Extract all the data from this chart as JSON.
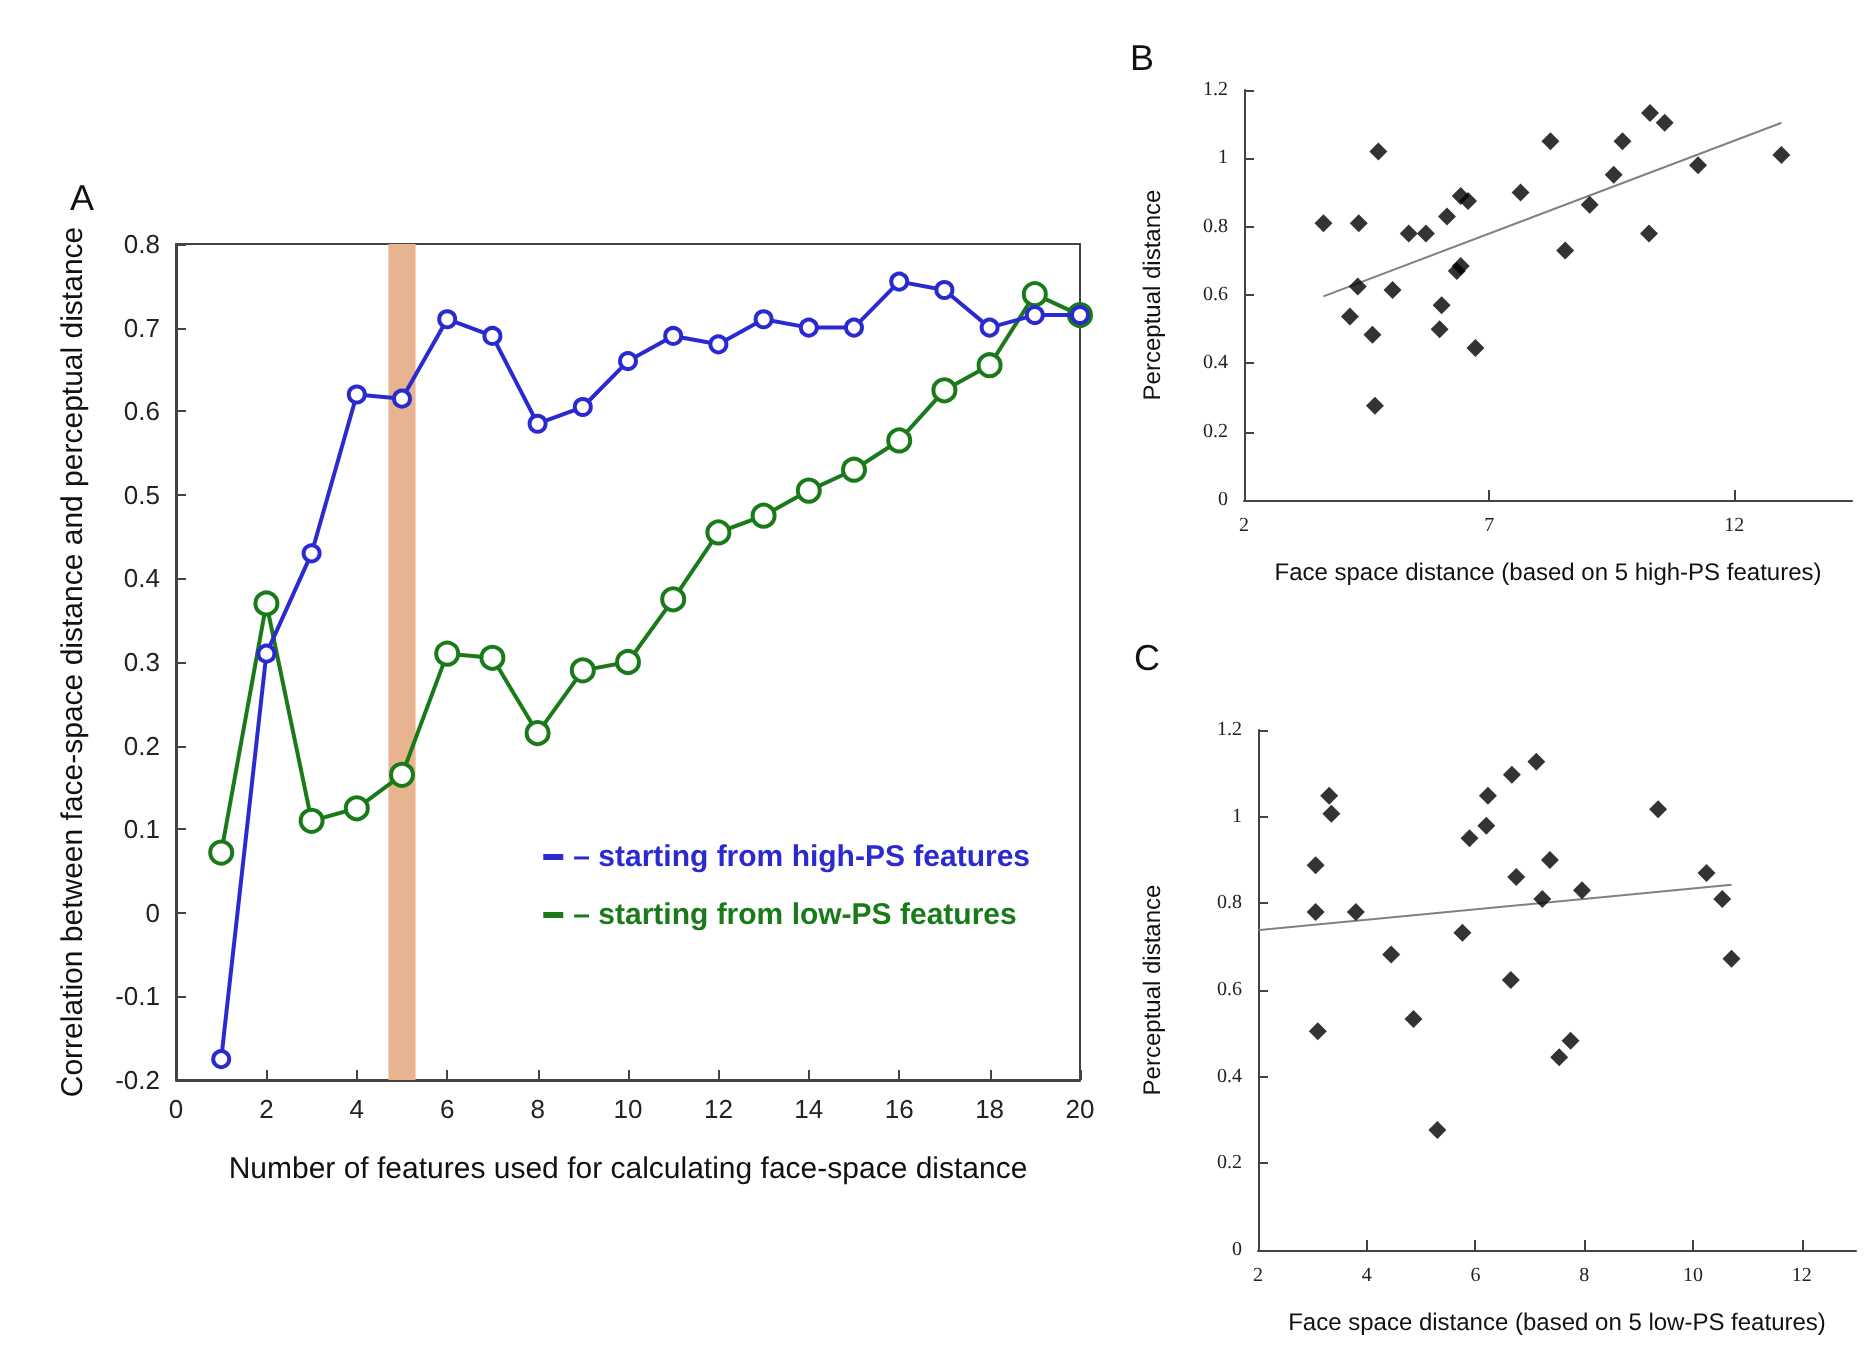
{
  "chart_data": [
    {
      "type": "line",
      "annotations": [
        "A"
      ],
      "xlabel": "Number of features used for calculating face-space distance",
      "ylabel": "Correlation between face-space distance and perceptual distance",
      "x": [
        1,
        2,
        3,
        4,
        5,
        6,
        7,
        8,
        9,
        10,
        11,
        12,
        13,
        14,
        15,
        16,
        17,
        18,
        19,
        20
      ],
      "series": [
        {
          "name": "– starting from high-PS features",
          "color": "#2a2ad0",
          "values": [
            -0.175,
            0.31,
            0.43,
            0.62,
            0.615,
            0.71,
            0.69,
            0.585,
            0.605,
            0.66,
            0.69,
            0.68,
            0.71,
            0.7,
            0.7,
            0.755,
            0.745,
            0.7,
            0.715,
            0.715
          ]
        },
        {
          "name": "– starting from low-PS features",
          "color": "#1a7a1a",
          "values": [
            0.072,
            0.37,
            0.11,
            0.125,
            0.165,
            0.31,
            0.305,
            0.215,
            0.29,
            0.3,
            0.375,
            0.455,
            0.475,
            0.505,
            0.53,
            0.565,
            0.625,
            0.655,
            0.74,
            0.715
          ]
        }
      ],
      "bands": [
        {
          "axis": "x",
          "from": 4.7,
          "to": 5.3,
          "color": "#e8b48f"
        }
      ],
      "xlim": [
        0,
        20
      ],
      "xticks": [
        0,
        2,
        4,
        6,
        8,
        10,
        12,
        14,
        16,
        18,
        20
      ],
      "ylim": [
        -0.2,
        0.8
      ],
      "yticks": [
        -0.2,
        -0.1,
        0,
        0.1,
        0.2,
        0.3,
        0.4,
        0.5,
        0.6,
        0.7,
        0.8
      ],
      "grid": false,
      "legend": "bottom right",
      "marker": "circle"
    },
    {
      "type": "scatter",
      "annotations": [
        "B"
      ],
      "xlabel": "Face space distance (based on 5 high-PS features)",
      "ylabel": "Perceptual distance",
      "series": [
        {
          "color": "#000000",
          "x": [
            3.62,
            4.34,
            4.74,
            4.32,
            4.16,
            4.62,
            4.67,
            5.03,
            5.36,
            5.71,
            6.14,
            6.03,
            5.99,
            6.34,
            6.42,
            6.42,
            6.57,
            6.72,
            7.64,
            8.25,
            8.55,
            9.05,
            9.54,
            9.72,
            10.26,
            10.28,
            10.58,
            11.26,
            12.96
          ],
          "values": [
            0.81,
            0.81,
            1.02,
            0.625,
            0.537,
            0.484,
            0.276,
            0.615,
            0.78,
            0.78,
            0.83,
            0.57,
            0.5,
            0.67,
            0.685,
            0.89,
            0.875,
            0.445,
            0.9,
            1.05,
            0.73,
            0.864,
            0.952,
            1.05,
            0.78,
            1.133,
            1.104,
            0.98,
            1.01
          ]
        },
        {
          "type": "line",
          "marker": "none",
          "color": "#808080",
          "x": [
            3.62,
            12.96
          ],
          "values": [
            0.596,
            1.104
          ]
        }
      ],
      "xlim": [
        2,
        14.4
      ],
      "xticks": [
        2,
        7,
        12
      ],
      "ylim": [
        0,
        1.2
      ],
      "yticks": [
        0,
        0.2,
        0.4,
        0.6,
        0.8,
        1,
        1.2
      ],
      "grid": false,
      "legend": false,
      "marker": "diamond"
    },
    {
      "type": "scatter",
      "annotations": [
        "C"
      ],
      "xlabel": "Face space distance (based on 5 low-PS features)",
      "ylabel": "Perceptual distance",
      "series": [
        {
          "color": "#000000",
          "x": [
            3.06,
            3.06,
            3.1,
            3.31,
            3.35,
            3.8,
            4.45,
            4.86,
            5.3,
            5.76,
            5.89,
            6.2,
            6.23,
            6.67,
            6.65,
            6.75,
            7.12,
            7.23,
            7.37,
            7.54,
            7.75,
            7.96,
            9.36,
            10.25,
            10.54,
            10.71
          ],
          "values": [
            0.888,
            0.78,
            0.505,
            1.048,
            1.007,
            0.78,
            0.682,
            0.533,
            0.277,
            0.732,
            0.95,
            0.979,
            1.048,
            1.097,
            0.623,
            0.861,
            1.127,
            0.81,
            0.9,
            0.445,
            0.483,
            0.83,
            1.017,
            0.87,
            0.81,
            0.672
          ]
        },
        {
          "type": "line",
          "marker": "none",
          "color": "#808080",
          "x": [
            2,
            10.71
          ],
          "values": [
            0.738,
            0.843
          ]
        }
      ],
      "xlim": [
        2,
        13
      ],
      "xticks": [
        2,
        4,
        6,
        8,
        10,
        12
      ],
      "ylim": [
        0,
        1.2
      ],
      "yticks": [
        0,
        0.2,
        0.4,
        0.6,
        0.8,
        1,
        1.2
      ],
      "grid": false,
      "legend": false,
      "marker": "diamond"
    }
  ]
}
